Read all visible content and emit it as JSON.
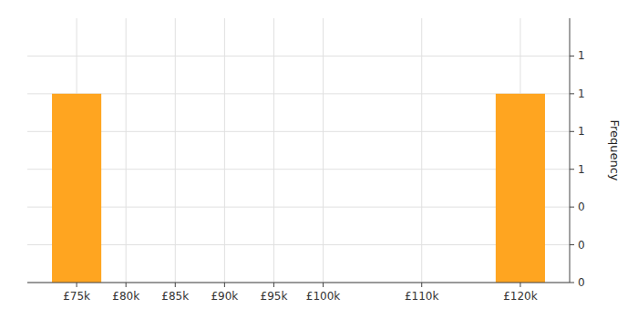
{
  "chart_data": {
    "type": "histogram",
    "ylabel": "Frequency",
    "bins": [
      72500,
      77500,
      82500,
      87500,
      92500,
      97500,
      102500,
      107500,
      112500,
      117500,
      122500
    ],
    "values": [
      1,
      0,
      0,
      0,
      0,
      0,
      0,
      0,
      0,
      1
    ],
    "color": "#FFA520",
    "xlim": [
      70000,
      125000
    ],
    "xticks": [
      {
        "value": 75000,
        "label": "£75k"
      },
      {
        "value": 80000,
        "label": "£80k"
      },
      {
        "value": 85000,
        "label": "£85k"
      },
      {
        "value": 90000,
        "label": "£90k"
      },
      {
        "value": 95000,
        "label": "£95k"
      },
      {
        "value": 100000,
        "label": "£100k"
      },
      {
        "value": 110000,
        "label": "£110k"
      },
      {
        "value": 120000,
        "label": "£120k"
      }
    ],
    "ylim": [
      0,
      1.4
    ],
    "yticks": [
      0,
      {
        "value": 0.2,
        "label": "0"
      },
      {
        "value": 0.4,
        "label": "0"
      },
      {
        "value": 0.6,
        "label": "1"
      },
      {
        "value": 0.8,
        "label": "1"
      },
      1,
      {
        "value": 1.2,
        "label": "1"
      }
    ],
    "grid": true
  }
}
